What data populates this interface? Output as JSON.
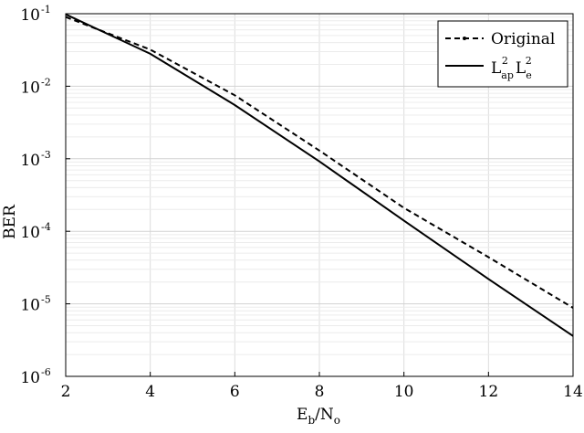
{
  "chart_data": {
    "type": "line",
    "title": "",
    "xlabel": {
      "main": "E",
      "sub1": "b",
      "mid": "/N",
      "sub2": "o"
    },
    "ylabel": "BER",
    "y_scale": "log",
    "xlim": [
      2,
      14
    ],
    "ylim": [
      1e-06,
      0.1
    ],
    "grid": true,
    "legend_placement": "top-right",
    "x_ticks": [
      "2",
      "4",
      "6",
      "8",
      "10",
      "12",
      "14"
    ],
    "y_ticks": [
      {
        "base": "10",
        "exp": "-6"
      },
      {
        "base": "10",
        "exp": "-5"
      },
      {
        "base": "10",
        "exp": "-4"
      },
      {
        "base": "10",
        "exp": "-3"
      },
      {
        "base": "10",
        "exp": "-2"
      },
      {
        "base": "10",
        "exp": "-1"
      }
    ],
    "series": [
      {
        "name": "Original",
        "style": "dashed",
        "color": "#000000",
        "x": [
          2,
          4,
          6,
          8,
          10,
          12,
          14
        ],
        "y": [
          0.09,
          0.032,
          0.0075,
          0.0013,
          0.00021,
          4.4e-05,
          8.8e-06
        ]
      },
      {
        "name": "L_ap^2 L_e^2",
        "style": "solid",
        "color": "#000000",
        "x": [
          2,
          4,
          6,
          8,
          10,
          12,
          14
        ],
        "y": [
          0.098,
          0.028,
          0.0055,
          0.00092,
          0.00014,
          2.2e-05,
          3.6e-06
        ]
      }
    ],
    "legend": {
      "original_label": "Original",
      "lap_base1": "L",
      "lap_sub1": "ap",
      "lap_sup1": "2",
      "lap_base2": "L",
      "lap_sub2": "e",
      "lap_sup2": "2"
    }
  }
}
